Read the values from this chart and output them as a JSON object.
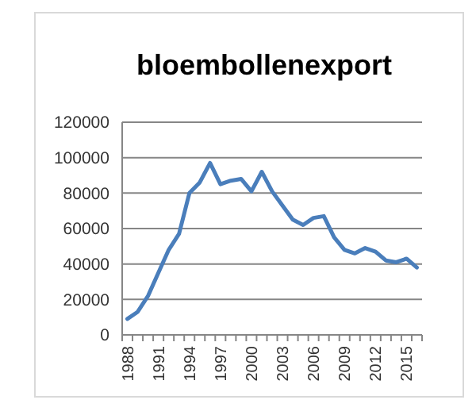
{
  "chart_data": {
    "type": "line",
    "title": "bloembollenexport",
    "categories": [
      "1988",
      null,
      null,
      "1991",
      null,
      null,
      "1994",
      null,
      null,
      "1997",
      null,
      null,
      "2000",
      null,
      null,
      "2003",
      null,
      null,
      "2006",
      null,
      null,
      "2009",
      null,
      null,
      "2012",
      null,
      null,
      "2015",
      null
    ],
    "series": [
      {
        "color": "#4a7ebb",
        "values": [
          9000,
          13000,
          22000,
          35000,
          48000,
          57000,
          80000,
          86000,
          97000,
          85000,
          87000,
          88000,
          81000,
          92000,
          81000,
          73000,
          65000,
          62000,
          66000,
          67000,
          55000,
          48000,
          46000,
          49000,
          47000,
          42000,
          41000,
          43000,
          38000
        ]
      }
    ],
    "ylim": [
      0,
      120000
    ],
    "yticks": [
      0,
      20000,
      40000,
      60000,
      80000,
      100000,
      120000
    ],
    "grid": "y"
  }
}
